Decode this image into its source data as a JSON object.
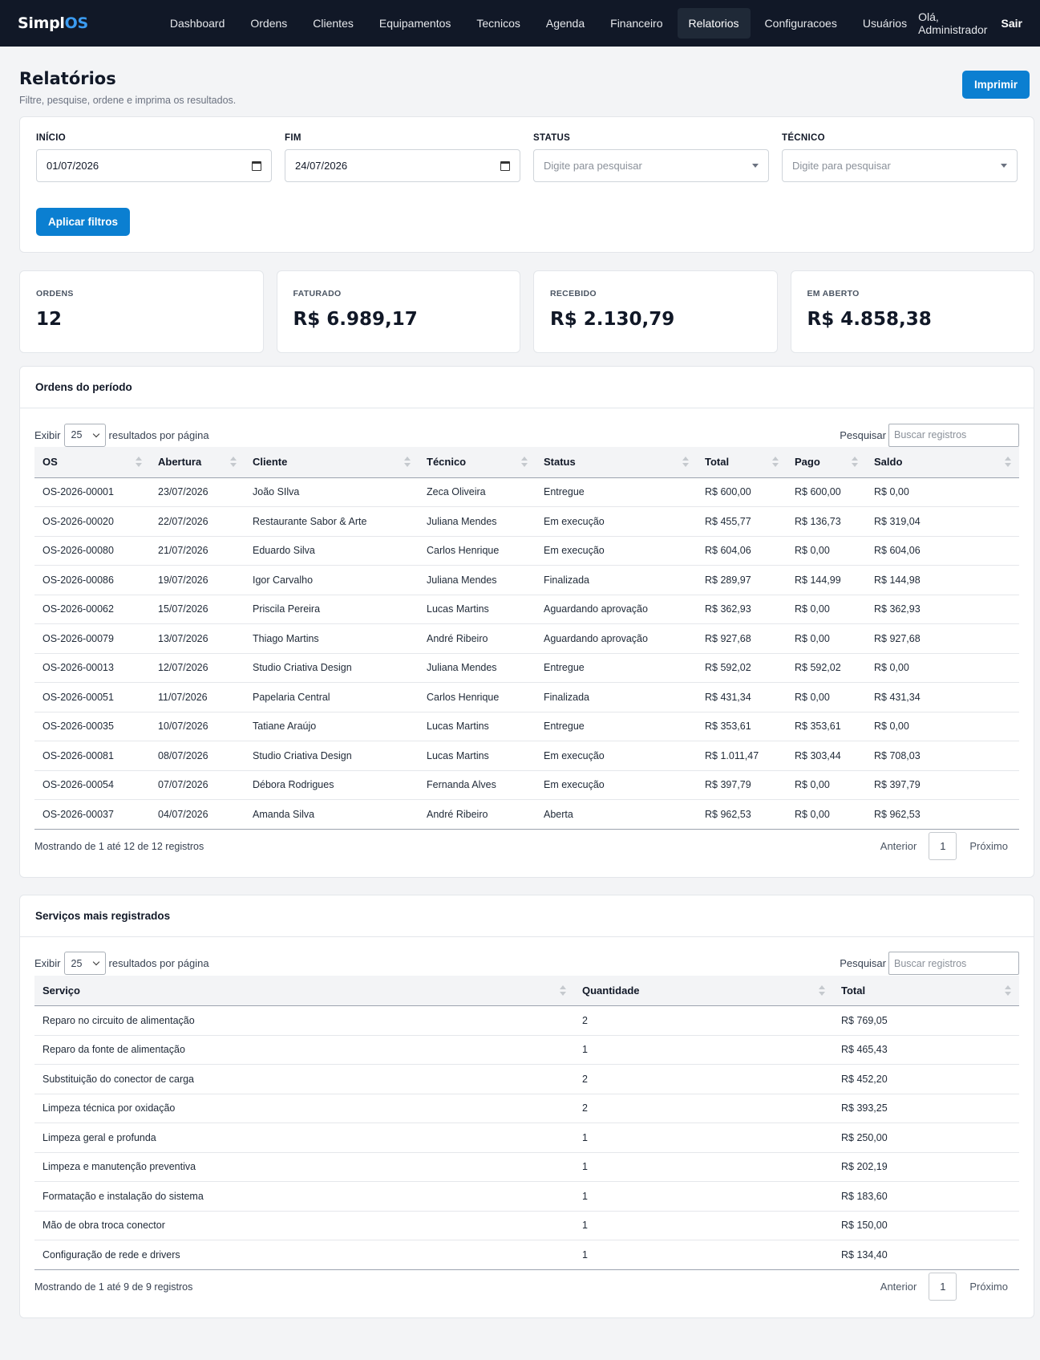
{
  "nav": {
    "brand_main": "Simpl",
    "brand_accent": "OS",
    "items": [
      "Dashboard",
      "Ordens",
      "Clientes",
      "Equipamentos",
      "Tecnicos",
      "Agenda",
      "Financeiro",
      "Relatorios",
      "Configuracoes",
      "Usuários"
    ],
    "active": "Relatorios",
    "greeting": "Olá, Administrador",
    "logout": "Sair"
  },
  "header": {
    "title": "Relatórios",
    "subtitle": "Filtre, pesquise, ordene e imprima os resultados.",
    "print_label": "Imprimir"
  },
  "filters": {
    "start_label": "INÍCIO",
    "start_value": "01/07/2026",
    "end_label": "FIM",
    "end_value": "24/07/2026",
    "status_label": "STATUS",
    "status_placeholder": "Digite para pesquisar",
    "tech_label": "TÉCNICO",
    "tech_placeholder": "Digite para pesquisar",
    "apply_label": "Aplicar filtros"
  },
  "stats": [
    {
      "label": "ORDENS",
      "value": "12"
    },
    {
      "label": "FATURADO",
      "value": "R$ 6.989,17"
    },
    {
      "label": "RECEBIDO",
      "value": "R$ 2.130,79"
    },
    {
      "label": "EM ABERTO",
      "value": "R$ 4.858,38"
    }
  ],
  "orders": {
    "title": "Ordens do período",
    "show_label": "Exibir",
    "page_size": "25",
    "per_page_label": "resultados por página",
    "search_label": "Pesquisar",
    "search_placeholder": "Buscar registros",
    "columns": [
      "OS",
      "Abertura",
      "Cliente",
      "Técnico",
      "Status",
      "Total",
      "Pago",
      "Saldo"
    ],
    "rows": [
      [
        "OS-2026-00001",
        "23/07/2026",
        "João SIlva",
        "Zeca Oliveira",
        "Entregue",
        "R$ 600,00",
        "R$ 600,00",
        "R$ 0,00"
      ],
      [
        "OS-2026-00020",
        "22/07/2026",
        "Restaurante Sabor & Arte",
        "Juliana Mendes",
        "Em execução",
        "R$ 455,77",
        "R$ 136,73",
        "R$ 319,04"
      ],
      [
        "OS-2026-00080",
        "21/07/2026",
        "Eduardo Silva",
        "Carlos Henrique",
        "Em execução",
        "R$ 604,06",
        "R$ 0,00",
        "R$ 604,06"
      ],
      [
        "OS-2026-00086",
        "19/07/2026",
        "Igor Carvalho",
        "Juliana Mendes",
        "Finalizada",
        "R$ 289,97",
        "R$ 144,99",
        "R$ 144,98"
      ],
      [
        "OS-2026-00062",
        "15/07/2026",
        "Priscila Pereira",
        "Lucas Martins",
        "Aguardando aprovação",
        "R$ 362,93",
        "R$ 0,00",
        "R$ 362,93"
      ],
      [
        "OS-2026-00079",
        "13/07/2026",
        "Thiago Martins",
        "André Ribeiro",
        "Aguardando aprovação",
        "R$ 927,68",
        "R$ 0,00",
        "R$ 927,68"
      ],
      [
        "OS-2026-00013",
        "12/07/2026",
        "Studio Criativa Design",
        "Juliana Mendes",
        "Entregue",
        "R$ 592,02",
        "R$ 592,02",
        "R$ 0,00"
      ],
      [
        "OS-2026-00051",
        "11/07/2026",
        "Papelaria Central",
        "Carlos Henrique",
        "Finalizada",
        "R$ 431,34",
        "R$ 0,00",
        "R$ 431,34"
      ],
      [
        "OS-2026-00035",
        "10/07/2026",
        "Tatiane Araújo",
        "Lucas Martins",
        "Entregue",
        "R$ 353,61",
        "R$ 353,61",
        "R$ 0,00"
      ],
      [
        "OS-2026-00081",
        "08/07/2026",
        "Studio Criativa Design",
        "Lucas Martins",
        "Em execução",
        "R$ 1.011,47",
        "R$ 303,44",
        "R$ 708,03"
      ],
      [
        "OS-2026-00054",
        "07/07/2026",
        "Débora Rodrigues",
        "Fernanda Alves",
        "Em execução",
        "R$ 397,79",
        "R$ 0,00",
        "R$ 397,79"
      ],
      [
        "OS-2026-00037",
        "04/07/2026",
        "Amanda Silva",
        "André Ribeiro",
        "Aberta",
        "R$ 962,53",
        "R$ 0,00",
        "R$ 962,53"
      ]
    ],
    "info": "Mostrando de 1 até 12 de 12 registros",
    "prev": "Anterior",
    "page": "1",
    "next": "Próximo"
  },
  "services": {
    "title": "Serviços mais registrados",
    "show_label": "Exibir",
    "page_size": "25",
    "per_page_label": "resultados por página",
    "search_label": "Pesquisar",
    "search_placeholder": "Buscar registros",
    "columns": [
      "Serviço",
      "Quantidade",
      "Total"
    ],
    "rows": [
      [
        "Reparo no circuito de alimentação",
        "2",
        "R$ 769,05"
      ],
      [
        "Reparo da fonte de alimentação",
        "1",
        "R$ 465,43"
      ],
      [
        "Substituição do conector de carga",
        "2",
        "R$ 452,20"
      ],
      [
        "Limpeza técnica por oxidação",
        "2",
        "R$ 393,25"
      ],
      [
        "Limpeza geral e profunda",
        "1",
        "R$ 250,00"
      ],
      [
        "Limpeza e manutenção preventiva",
        "1",
        "R$ 202,19"
      ],
      [
        "Formatação e instalação do sistema",
        "1",
        "R$ 183,60"
      ],
      [
        "Mão de obra troca conector",
        "1",
        "R$ 150,00"
      ],
      [
        "Configuração de rede e drivers",
        "1",
        "R$ 134,40"
      ]
    ],
    "info": "Mostrando de 1 até 9 de 9 registros",
    "prev": "Anterior",
    "page": "1",
    "next": "Próximo"
  }
}
